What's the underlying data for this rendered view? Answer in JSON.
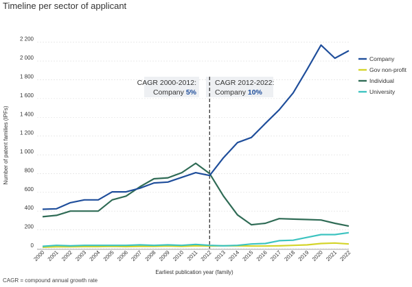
{
  "page_title": "Timeline per sector of applicant",
  "footnote": "CAGR = compound annual growth rate",
  "chart_data": {
    "type": "line",
    "title": "Timeline per sector of applicant",
    "xlabel": "Earliest publication year (family)",
    "ylabel": "Number of patent families (IPFs)",
    "ylim": [
      0,
      2300
    ],
    "yticks": [
      0,
      200,
      400,
      600,
      800,
      1000,
      1200,
      1400,
      1600,
      1800,
      2000,
      2200
    ],
    "ytick_labels": [
      "0",
      "200",
      "400",
      "600",
      "800",
      "1 000",
      "1 200",
      "1 400",
      "1 600",
      "1 800",
      "2 000",
      "2 200"
    ],
    "x": [
      "2000",
      "2001",
      "2002",
      "2003",
      "2004",
      "2005",
      "2006",
      "2007",
      "2008",
      "2009",
      "2010",
      "2011",
      "2012",
      "2013",
      "2014",
      "2015",
      "2016",
      "2017",
      "2018",
      "2019",
      "2020",
      "2021",
      "2022"
    ],
    "series": [
      {
        "name": "Company",
        "color": "#1f4e9b",
        "values": [
          420,
          425,
          490,
          520,
          520,
          605,
          605,
          645,
          700,
          710,
          760,
          810,
          780,
          970,
          1130,
          1185,
          1335,
          1480,
          1660,
          1910,
          2170,
          2030,
          2110
        ]
      },
      {
        "name": "Gov non-profit",
        "color": "#d4d42a",
        "values": [
          15,
          20,
          20,
          22,
          22,
          25,
          22,
          25,
          25,
          28,
          25,
          30,
          28,
          30,
          30,
          28,
          28,
          30,
          35,
          40,
          55,
          60,
          50
        ]
      },
      {
        "name": "Individual",
        "color": "#2f6b55",
        "values": [
          340,
          355,
          400,
          400,
          400,
          520,
          560,
          660,
          745,
          755,
          810,
          910,
          800,
          560,
          360,
          255,
          270,
          320,
          315,
          310,
          305,
          270,
          240
        ]
      },
      {
        "name": "University",
        "color": "#3cc3c0",
        "values": [
          25,
          35,
          30,
          35,
          35,
          35,
          35,
          40,
          35,
          40,
          35,
          45,
          35,
          30,
          35,
          50,
          55,
          85,
          90,
          120,
          150,
          150,
          170
        ]
      }
    ],
    "divider_at": "2012",
    "annotations": [
      {
        "line1": "CAGR 2000-2012:",
        "prefix": "Company ",
        "value": "5%"
      },
      {
        "line1": "CAGR 2012-2022:",
        "prefix": "Company ",
        "value": "10%"
      }
    ],
    "legend_position": "right"
  }
}
